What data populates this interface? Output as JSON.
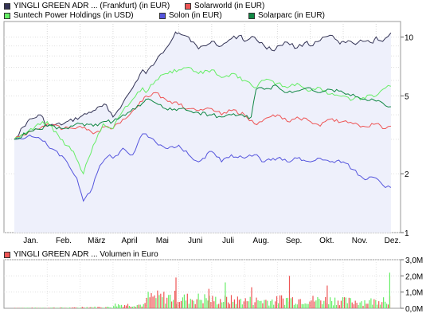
{
  "chart_data": [
    {
      "type": "line",
      "log_scale": true,
      "ylim": [
        1,
        12
      ],
      "grid": true,
      "legend_position": "top-left",
      "background": "#ffffff",
      "area_fill_color": "#eef0fb",
      "x_categories": [
        "Jan.",
        "Feb.",
        "März",
        "April",
        "Mai",
        "Juni",
        "Juli",
        "Aug.",
        "Sep.",
        "Okt.",
        "Nov.",
        "Dez."
      ],
      "y_ticks": [
        {
          "v": 1,
          "label": "1"
        },
        {
          "v": 2,
          "label": "2"
        },
        {
          "v": 5,
          "label": "5"
        },
        {
          "v": 10,
          "label": "10"
        }
      ],
      "series": [
        {
          "name": "YINGLI GREEN ADR ... (Frankfurt) (in EUR)",
          "color": "#333355",
          "fill": true,
          "x": [
            0,
            0.4,
            0.8,
            1.0,
            1.5,
            2.0,
            2.4,
            2.8,
            3.0,
            3.3,
            3.6,
            3.9,
            4.0,
            4.3,
            4.6,
            4.9,
            5.0,
            5.3,
            5.6,
            5.9,
            6.0,
            6.3,
            6.6,
            6.9,
            7.0,
            7.3,
            7.6,
            7.9,
            8.0,
            8.3,
            8.6,
            8.9,
            9.0,
            9.3,
            9.6,
            9.9,
            10.0,
            10.3,
            10.6,
            10.9,
            11.0,
            11.2,
            11.45
          ],
          "y": [
            3.0,
            3.7,
            4.0,
            3.5,
            3.6,
            3.9,
            4.2,
            4.5,
            3.9,
            4.6,
            5.5,
            6.8,
            6.5,
            7.5,
            8.7,
            10.6,
            10.5,
            10.0,
            8.7,
            9.2,
            9.5,
            9.0,
            9.8,
            10.2,
            9.5,
            10.0,
            9.0,
            8.5,
            9.0,
            9.4,
            8.8,
            9.5,
            9.0,
            9.6,
            10.2,
            9.2,
            9.5,
            9.3,
            9.5,
            9.3,
            10.0,
            9.5,
            10.5
          ]
        },
        {
          "name": "Solarworld (in EUR)",
          "color": "#ee5555",
          "fill": false,
          "x": [
            0,
            0.5,
            1.0,
            1.5,
            2.0,
            2.4,
            2.8,
            3.0,
            3.3,
            3.6,
            3.9,
            4.0,
            4.3,
            4.6,
            5.0,
            5.3,
            5.6,
            6.0,
            6.3,
            6.6,
            7.0,
            7.3,
            7.6,
            8.0,
            8.3,
            8.6,
            9.0,
            9.3,
            9.6,
            10.0,
            10.3,
            10.6,
            11.0,
            11.2,
            11.45
          ],
          "y": [
            3.0,
            3.3,
            3.6,
            3.4,
            3.5,
            3.2,
            3.5,
            3.4,
            3.8,
            4.2,
            4.7,
            5.0,
            5.2,
            4.8,
            4.5,
            4.3,
            4.2,
            4.3,
            4.0,
            4.2,
            4.0,
            3.6,
            3.8,
            4.0,
            3.7,
            3.9,
            3.7,
            3.5,
            3.8,
            3.7,
            3.6,
            3.5,
            3.6,
            3.4,
            3.5
          ]
        },
        {
          "name": "Suntech Power Holdings (in USD)",
          "color": "#66ee66",
          "fill": false,
          "x": [
            0,
            0.5,
            1.0,
            1.4,
            1.8,
            2.1,
            2.4,
            2.7,
            3.0,
            3.3,
            3.6,
            3.9,
            4.0,
            4.3,
            4.6,
            5.0,
            5.3,
            5.6,
            6.0,
            6.3,
            6.6,
            7.0,
            7.3,
            7.6,
            8.0,
            8.3,
            8.6,
            9.0,
            9.3,
            9.6,
            10.0,
            10.3,
            10.6,
            11.0,
            11.2,
            11.45
          ],
          "y": [
            3.0,
            3.4,
            3.7,
            3.0,
            2.6,
            2.0,
            2.8,
            3.6,
            3.4,
            4.2,
            4.8,
            5.5,
            5.2,
            6.0,
            6.5,
            6.8,
            7.0,
            6.5,
            6.8,
            6.2,
            6.5,
            6.0,
            5.5,
            6.0,
            5.8,
            5.5,
            5.8,
            5.3,
            5.5,
            5.1,
            5.0,
            4.8,
            4.9,
            5.0,
            5.4,
            5.6
          ]
        },
        {
          "name": "Solon (in EUR)",
          "color": "#5555dd",
          "fill": false,
          "x": [
            0,
            0.4,
            0.8,
            1.0,
            1.3,
            1.6,
            1.9,
            2.1,
            2.3,
            2.6,
            2.9,
            3.0,
            3.3,
            3.6,
            3.9,
            4.0,
            4.3,
            4.6,
            5.0,
            5.3,
            5.6,
            6.0,
            6.3,
            6.6,
            7.0,
            7.3,
            7.6,
            8.0,
            8.3,
            8.6,
            9.0,
            9.3,
            9.6,
            10.0,
            10.3,
            10.6,
            11.0,
            11.2,
            11.45
          ],
          "y": [
            3.0,
            3.1,
            3.0,
            2.8,
            2.6,
            2.3,
            1.9,
            1.45,
            1.6,
            2.2,
            2.5,
            2.4,
            2.7,
            2.5,
            3.2,
            3.2,
            2.9,
            2.7,
            2.8,
            2.5,
            2.3,
            2.6,
            2.3,
            2.5,
            2.4,
            2.5,
            2.3,
            2.4,
            2.3,
            2.4,
            2.3,
            2.4,
            2.3,
            2.3,
            2.1,
            1.9,
            1.9,
            1.75,
            1.7
          ]
        },
        {
          "name": "Solarparc (in EUR)",
          "color": "#118844",
          "fill": false,
          "x": [
            0,
            0.5,
            1.0,
            1.5,
            2.0,
            2.4,
            2.8,
            3.0,
            3.3,
            3.6,
            3.9,
            4.0,
            4.3,
            4.6,
            5.0,
            5.3,
            5.6,
            6.0,
            6.3,
            6.6,
            7.0,
            7.2,
            7.35,
            7.6,
            8.0,
            8.3,
            8.6,
            9.0,
            9.3,
            9.6,
            10.0,
            10.3,
            10.6,
            11.0,
            11.2,
            11.45
          ],
          "y": [
            3.0,
            3.3,
            3.5,
            3.4,
            3.6,
            3.5,
            3.7,
            3.7,
            4.0,
            4.3,
            4.6,
            4.8,
            4.6,
            4.3,
            4.3,
            4.2,
            4.1,
            4.0,
            3.9,
            4.0,
            3.9,
            3.9,
            5.4,
            5.4,
            5.6,
            5.2,
            5.3,
            5.5,
            5.2,
            5.4,
            5.2,
            5.1,
            4.8,
            4.7,
            4.6,
            4.4
          ]
        }
      ]
    },
    {
      "type": "bar",
      "title": "YINGLI GREEN ADR ... Volumen in Euro",
      "legend_color": "#ee5555",
      "ylim": [
        0,
        3.0
      ],
      "y_ticks": [
        {
          "v": 0,
          "label": "0,0M"
        },
        {
          "v": 1,
          "label": "1,0M"
        },
        {
          "v": 2,
          "label": "2,0M"
        },
        {
          "v": 3,
          "label": "3,0M"
        }
      ],
      "bars": {
        "green": "#66ee66",
        "red": "#ee5555"
      },
      "x_categories": [
        "Jan.",
        "Feb.",
        "März",
        "April",
        "Mai",
        "Juni",
        "Juli",
        "Aug.",
        "Sep.",
        "Okt.",
        "Nov.",
        "Dez."
      ],
      "monthly_avg_volume": [
        0.03,
        0.04,
        0.08,
        0.25,
        0.8,
        0.7,
        0.6,
        0.55,
        0.65,
        0.6,
        0.5,
        0.7
      ],
      "spikes": [
        {
          "month": 4.9,
          "v": 1.9,
          "color": "red"
        },
        {
          "month": 5.9,
          "v": 1.2,
          "color": "red"
        },
        {
          "month": 6.4,
          "v": 1.6,
          "color": "green"
        },
        {
          "month": 7.2,
          "v": 1.3,
          "color": "red"
        },
        {
          "month": 8.35,
          "v": 2.0,
          "color": "red"
        },
        {
          "month": 9.5,
          "v": 1.4,
          "color": "red"
        },
        {
          "month": 11.4,
          "v": 2.2,
          "color": "green"
        }
      ]
    }
  ]
}
